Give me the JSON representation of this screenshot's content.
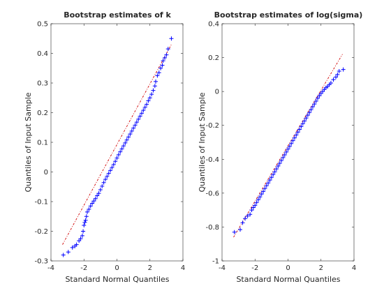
{
  "chart_data": [
    {
      "type": "scatter",
      "title": "Bootstrap estimates of k",
      "xlabel": "Standard Normal Quantiles",
      "ylabel": "Quantiles of Input Sample",
      "xlim": [
        -4,
        4
      ],
      "ylim": [
        -0.3,
        0.5
      ],
      "xticks": [
        -4,
        -2,
        0,
        2,
        4
      ],
      "yticks": [
        -0.3,
        -0.2,
        -0.1,
        0,
        0.1,
        0.2,
        0.3,
        0.4,
        0.5
      ],
      "xtick_labels": [
        "-4",
        "-2",
        "0",
        "2",
        "4"
      ],
      "ytick_labels": [
        "-0.3",
        "-0.2",
        "-0.1",
        "0",
        "0.1",
        "0.2",
        "0.3",
        "0.4",
        "0.5"
      ],
      "reference_line": {
        "x": [
          -3.3,
          3.3
        ],
        "y": [
          -0.245,
          0.43
        ]
      },
      "marker": "+",
      "marker_color": "#0000ff",
      "line_color": "#d00000",
      "points": [
        [
          -3.25,
          -0.28
        ],
        [
          -2.95,
          -0.27
        ],
        [
          -2.7,
          -0.255
        ],
        [
          -2.55,
          -0.25
        ],
        [
          -2.45,
          -0.245
        ],
        [
          -2.3,
          -0.232
        ],
        [
          -2.2,
          -0.225
        ],
        [
          -2.1,
          -0.215
        ],
        [
          -2.05,
          -0.2
        ],
        [
          -2.0,
          -0.18
        ],
        [
          -1.95,
          -0.17
        ],
        [
          -1.9,
          -0.163
        ],
        [
          -1.85,
          -0.15
        ],
        [
          -1.8,
          -0.135
        ],
        [
          -1.7,
          -0.126
        ],
        [
          -1.6,
          -0.115
        ],
        [
          -1.5,
          -0.106
        ],
        [
          -1.4,
          -0.098
        ],
        [
          -1.3,
          -0.09
        ],
        [
          -1.2,
          -0.08
        ],
        [
          -1.1,
          -0.072
        ],
        [
          -1.0,
          -0.06
        ],
        [
          -0.9,
          -0.048
        ],
        [
          -0.8,
          -0.036
        ],
        [
          -0.7,
          -0.025
        ],
        [
          -0.6,
          -0.015
        ],
        [
          -0.5,
          -0.005
        ],
        [
          -0.4,
          0.005
        ],
        [
          -0.3,
          0.015
        ],
        [
          -0.2,
          0.025
        ],
        [
          -0.1,
          0.036
        ],
        [
          0.0,
          0.047
        ],
        [
          0.1,
          0.058
        ],
        [
          0.2,
          0.068
        ],
        [
          0.3,
          0.078
        ],
        [
          0.4,
          0.088
        ],
        [
          0.5,
          0.098
        ],
        [
          0.6,
          0.108
        ],
        [
          0.7,
          0.118
        ],
        [
          0.8,
          0.128
        ],
        [
          0.9,
          0.138
        ],
        [
          1.0,
          0.148
        ],
        [
          1.1,
          0.158
        ],
        [
          1.2,
          0.168
        ],
        [
          1.3,
          0.178
        ],
        [
          1.4,
          0.188
        ],
        [
          1.5,
          0.198
        ],
        [
          1.6,
          0.208
        ],
        [
          1.7,
          0.218
        ],
        [
          1.8,
          0.228
        ],
        [
          1.9,
          0.24
        ],
        [
          2.0,
          0.25
        ],
        [
          2.1,
          0.262
        ],
        [
          2.2,
          0.275
        ],
        [
          2.3,
          0.29
        ],
        [
          2.35,
          0.305
        ],
        [
          2.45,
          0.325
        ],
        [
          2.55,
          0.335
        ],
        [
          2.65,
          0.35
        ],
        [
          2.75,
          0.36
        ],
        [
          2.8,
          0.375
        ],
        [
          2.9,
          0.385
        ],
        [
          3.0,
          0.395
        ],
        [
          3.1,
          0.415
        ],
        [
          3.3,
          0.45
        ]
      ]
    },
    {
      "type": "scatter",
      "title": "Bootstrap estimates of log(sigma)",
      "xlabel": "Standard Normal Quantiles",
      "ylabel": "Quantiles of Input Sample",
      "xlim": [
        -4,
        4
      ],
      "ylim": [
        -1,
        0.4
      ],
      "xticks": [
        -4,
        -2,
        0,
        2,
        4
      ],
      "yticks": [
        -1,
        -0.8,
        -0.6,
        -0.4,
        -0.2,
        0,
        0.2,
        0.4
      ],
      "xtick_labels": [
        "-4",
        "-2",
        "0",
        "2",
        "4"
      ],
      "ytick_labels": [
        "-1",
        "-0.8",
        "-0.6",
        "-0.4",
        "-0.2",
        "0",
        "0.2",
        "0.4"
      ],
      "reference_line": {
        "x": [
          -3.3,
          3.3
        ],
        "y": [
          -0.86,
          0.22
        ]
      },
      "marker": "+",
      "marker_color": "#0000ff",
      "line_color": "#d00000",
      "points": [
        [
          -3.25,
          -0.83
        ],
        [
          -2.9,
          -0.815
        ],
        [
          -2.75,
          -0.775
        ],
        [
          -2.6,
          -0.75
        ],
        [
          -2.45,
          -0.735
        ],
        [
          -2.3,
          -0.725
        ],
        [
          -2.2,
          -0.7
        ],
        [
          -2.1,
          -0.685
        ],
        [
          -2.0,
          -0.672
        ],
        [
          -1.9,
          -0.655
        ],
        [
          -1.8,
          -0.638
        ],
        [
          -1.7,
          -0.622
        ],
        [
          -1.6,
          -0.605
        ],
        [
          -1.5,
          -0.59
        ],
        [
          -1.4,
          -0.573
        ],
        [
          -1.3,
          -0.556
        ],
        [
          -1.2,
          -0.54
        ],
        [
          -1.1,
          -0.523
        ],
        [
          -1.0,
          -0.507
        ],
        [
          -0.9,
          -0.49
        ],
        [
          -0.8,
          -0.474
        ],
        [
          -0.7,
          -0.457
        ],
        [
          -0.6,
          -0.44
        ],
        [
          -0.5,
          -0.424
        ],
        [
          -0.4,
          -0.407
        ],
        [
          -0.3,
          -0.39
        ],
        [
          -0.2,
          -0.374
        ],
        [
          -0.1,
          -0.357
        ],
        [
          0.0,
          -0.34
        ],
        [
          0.1,
          -0.324
        ],
        [
          0.2,
          -0.307
        ],
        [
          0.3,
          -0.29
        ],
        [
          0.4,
          -0.274
        ],
        [
          0.5,
          -0.257
        ],
        [
          0.6,
          -0.24
        ],
        [
          0.7,
          -0.224
        ],
        [
          0.8,
          -0.207
        ],
        [
          0.9,
          -0.19
        ],
        [
          1.0,
          -0.174
        ],
        [
          1.1,
          -0.157
        ],
        [
          1.2,
          -0.14
        ],
        [
          1.3,
          -0.124
        ],
        [
          1.4,
          -0.107
        ],
        [
          1.5,
          -0.09
        ],
        [
          1.6,
          -0.074
        ],
        [
          1.7,
          -0.057
        ],
        [
          1.8,
          -0.04
        ],
        [
          1.9,
          -0.025
        ],
        [
          2.0,
          -0.012
        ],
        [
          2.1,
          0.0
        ],
        [
          2.2,
          0.012
        ],
        [
          2.3,
          0.022
        ],
        [
          2.4,
          0.03
        ],
        [
          2.5,
          0.04
        ],
        [
          2.6,
          0.05
        ],
        [
          2.75,
          0.07
        ],
        [
          2.9,
          0.085
        ],
        [
          3.0,
          0.1
        ],
        [
          3.1,
          0.12
        ],
        [
          3.35,
          0.13
        ]
      ]
    }
  ]
}
